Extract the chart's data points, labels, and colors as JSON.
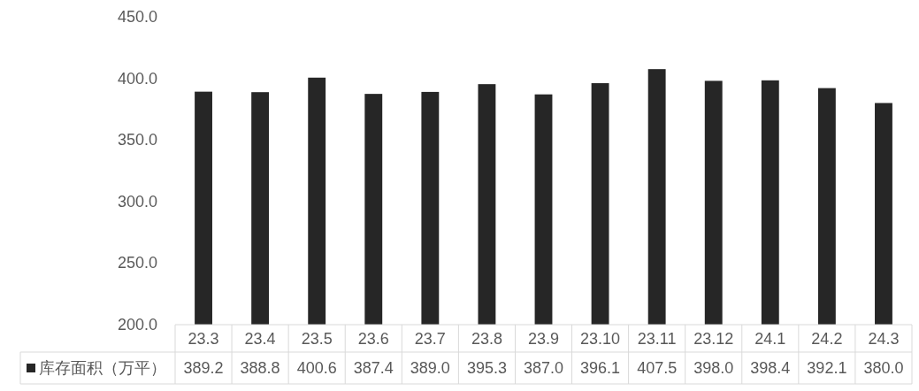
{
  "chart_data": {
    "type": "bar",
    "categories": [
      "23.3",
      "23.4",
      "23.5",
      "23.6",
      "23.7",
      "23.8",
      "23.9",
      "23.10",
      "23.11",
      "23.12",
      "24.1",
      "24.2",
      "24.3"
    ],
    "series": [
      {
        "name": "库存面积（万平）",
        "color": "#262626",
        "values": [
          389.2,
          388.8,
          400.6,
          387.4,
          389.0,
          395.3,
          387.0,
          396.1,
          407.5,
          398.0,
          398.4,
          392.1,
          380.0
        ],
        "value_labels": [
          "389.2",
          "388.8",
          "400.6",
          "387.4",
          "389.0",
          "395.3",
          "387.0",
          "396.1",
          "407.5",
          "398.0",
          "398.4",
          "392.1",
          "380.0"
        ]
      }
    ],
    "ylim": [
      200,
      450
    ],
    "yticks": [
      {
        "value": 200,
        "label": "200.0"
      },
      {
        "value": 250,
        "label": "250.0"
      },
      {
        "value": 300,
        "label": "300.0"
      },
      {
        "value": 350,
        "label": "350.0"
      },
      {
        "value": 400,
        "label": "400.0"
      },
      {
        "value": 450,
        "label": "450.0"
      }
    ],
    "legend": "bottom"
  }
}
